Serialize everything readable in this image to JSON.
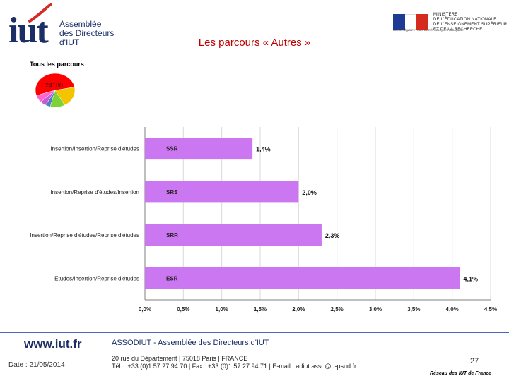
{
  "header": {
    "logo_text": "iut",
    "logo_subtitle": [
      "Assemblée",
      "des Directeurs",
      "d'IUT"
    ],
    "ministry_motto": "Liberté • Égalité • Fraternité RÉPUBLIQUE FRANÇAISE",
    "ministry_lines": [
      "MINISTÈRE",
      "DE L'ÉDUCATION NATIONALE",
      "DE L'ENSEIGNEMENT SUPÉRIEUR",
      "ET DE LA RECHERCHE"
    ],
    "slide_title": "Les parcours « Autres »"
  },
  "pie": {
    "title": "Tous les parcours",
    "label": "24180",
    "colors": [
      "#ff0000",
      "#f3c400",
      "#7dd336",
      "#4f81bd",
      "#c55bd6",
      "#ff66cc"
    ]
  },
  "chart_data": {
    "type": "bar",
    "orientation": "horizontal",
    "categories": [
      "Insertion/Insertion/Reprise d'études",
      "Insertion/Reprise d'études/Insertion",
      "Insertion/Reprise d'études/Reprise d'études",
      "Etudes/Insertion/Reprise d'études"
    ],
    "codes": [
      "SSR",
      "SRS",
      "SRR",
      "ESR"
    ],
    "values": [
      1.4,
      2.0,
      2.3,
      4.1
    ],
    "value_labels": [
      "1,4%",
      "2,0%",
      "2,3%",
      "4,1%"
    ],
    "xlim": [
      0,
      4.5
    ],
    "x_ticks": [
      "0,0%",
      "0,5%",
      "1,0%",
      "1,5%",
      "2,0%",
      "2,5%",
      "3,0%",
      "3,5%",
      "4,0%",
      "4,5%"
    ],
    "grid": true,
    "bar_color": "#cc77f2"
  },
  "footer": {
    "url": "www.iut.fr",
    "date": "Date : 21/05/2014",
    "org": "ASSODIUT - Assemblée des Directeurs d'IUT",
    "address": "20 rue du Département | 75018 Paris | FRANCE",
    "contact": "Tél. : +33 (0)1 57 27 94 70 | Fax : +33 (0)1 57 27 94 71 | E-mail : adiut.asso@u-psud.fr",
    "page_number": "27",
    "network": "Réseau des IUT de France"
  }
}
